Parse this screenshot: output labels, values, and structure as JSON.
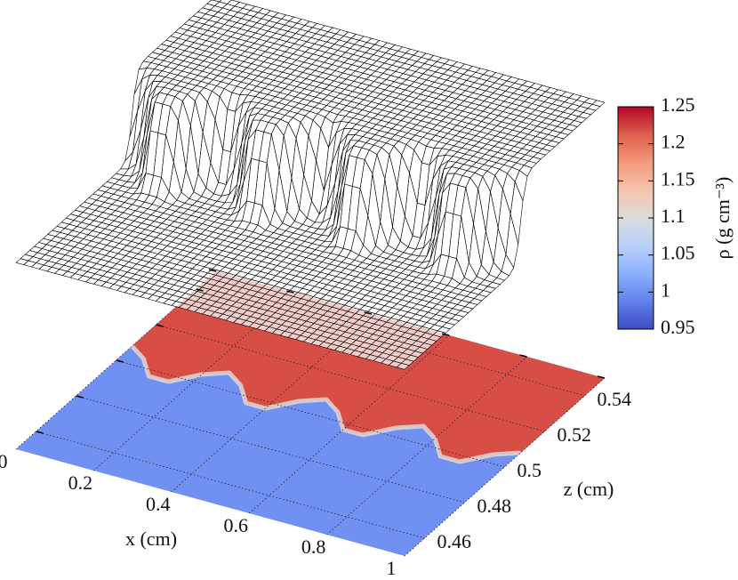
{
  "chart_data": {
    "type": "surface",
    "xlabel": "x (cm)",
    "zlabel": "z (cm)",
    "colorbar_label": "ρ (g cm⁻³)",
    "xlim": [
      0,
      1
    ],
    "xticks": [
      0,
      0.2,
      0.4,
      0.6,
      0.8,
      1
    ],
    "zlim": [
      0.45,
      0.55
    ],
    "zticks": [
      0.46,
      0.48,
      0.5,
      0.52,
      0.54
    ],
    "clim": [
      0.95,
      1.25
    ],
    "cticks": [
      0.95,
      1,
      1.05,
      1.1,
      1.15,
      1.2,
      1.25
    ],
    "colormap": "coolwarm",
    "grid": true,
    "density_low": 1,
    "density_high": 1.22,
    "interface": {
      "x": [
        0,
        0.05,
        0.1,
        0.15,
        0.2,
        0.25,
        0.3,
        0.35,
        0.4,
        0.45,
        0.5,
        0.55,
        0.6,
        0.65,
        0.7,
        0.75,
        0.8,
        0.85,
        0.9,
        0.95,
        1
      ],
      "z": [
        0.508,
        0.504,
        0.497,
        0.497,
        0.504,
        0.508,
        0.504,
        0.497,
        0.497,
        0.504,
        0.508,
        0.504,
        0.497,
        0.497,
        0.504,
        0.508,
        0.504,
        0.497,
        0.497,
        0.504,
        0.508
      ]
    }
  }
}
